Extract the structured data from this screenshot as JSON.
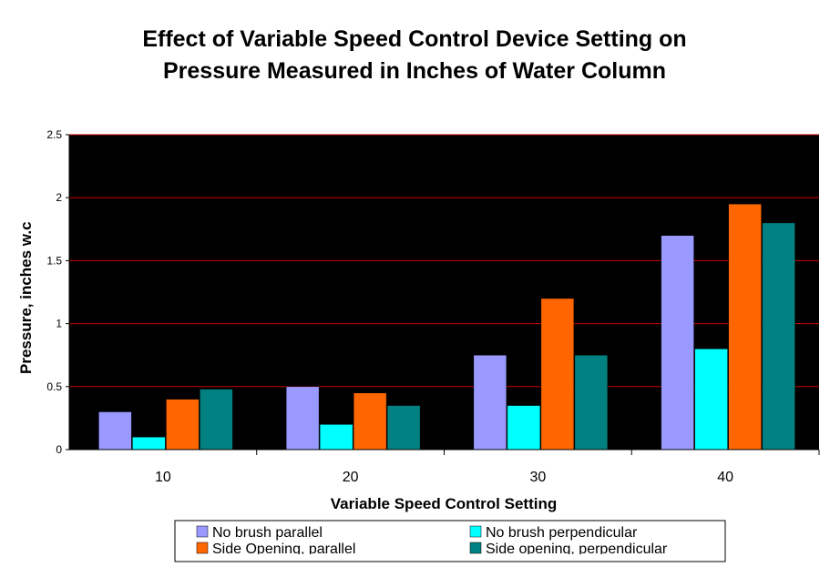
{
  "chart_data": {
    "type": "bar",
    "title_line1": "Effect of Variable Speed Control Device Setting on",
    "title_line2": "Pressure Measured in Inches of Water Column",
    "xlabel": "Variable Speed Control Setting",
    "ylabel": "Pressure, inches w.c",
    "categories": [
      "10",
      "20",
      "30",
      "40"
    ],
    "ylim": [
      0,
      2.5
    ],
    "yticks": [
      "0",
      "0.5",
      "1",
      "1.5",
      "2",
      "2.5"
    ],
    "ytick_values": [
      0,
      0.5,
      1,
      1.5,
      2,
      2.5
    ],
    "grid": true,
    "legend_position": "bottom",
    "plot_background": "#000000",
    "grid_color": "#cc0000",
    "series": [
      {
        "name": "No brush parallel",
        "color": "#9999ff",
        "values": [
          0.3,
          0.5,
          0.75,
          1.7
        ]
      },
      {
        "name": "No brush perpendicular",
        "color": "#00ffff",
        "values": [
          0.1,
          0.2,
          0.35,
          0.8
        ]
      },
      {
        "name": "Side Opening, parallel",
        "color": "#ff6600",
        "values": [
          0.4,
          0.45,
          1.2,
          1.95
        ]
      },
      {
        "name": "Side opening, perpendicular",
        "color": "#008080",
        "values": [
          0.48,
          0.35,
          0.75,
          1.8
        ]
      }
    ]
  }
}
